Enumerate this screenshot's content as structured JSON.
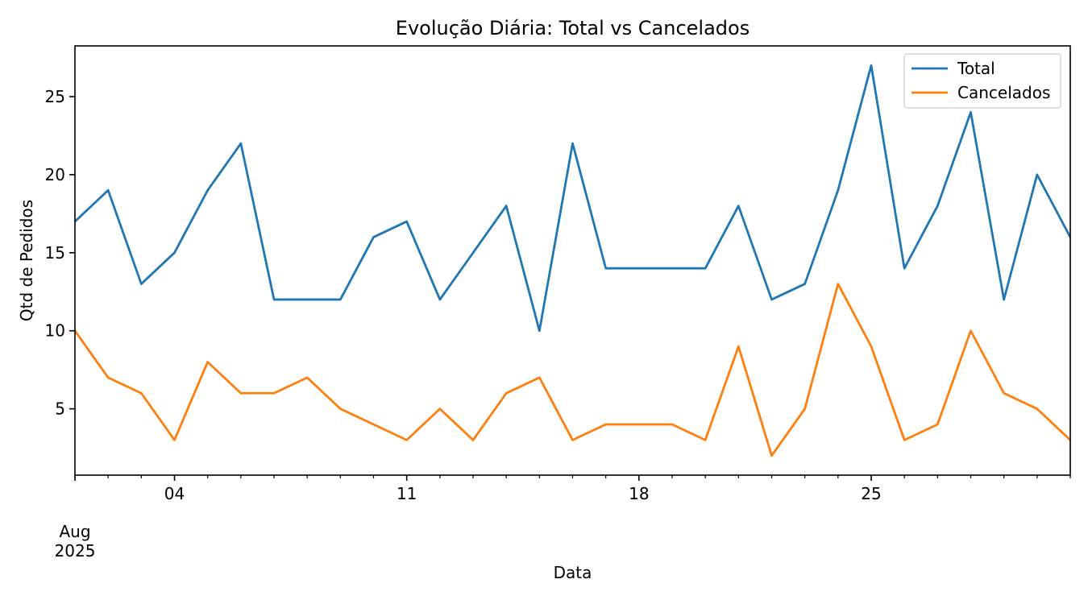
{
  "chart_data": {
    "type": "line",
    "title": "Evolução Diária: Total vs Cancelados",
    "xlabel": "Data",
    "ylabel": "Qtd de Pedidos",
    "x": [
      "2025-08-01",
      "2025-08-02",
      "2025-08-03",
      "2025-08-04",
      "2025-08-05",
      "2025-08-06",
      "2025-08-07",
      "2025-08-08",
      "2025-08-09",
      "2025-08-10",
      "2025-08-11",
      "2025-08-12",
      "2025-08-13",
      "2025-08-14",
      "2025-08-15",
      "2025-08-16",
      "2025-08-17",
      "2025-08-18",
      "2025-08-19",
      "2025-08-20",
      "2025-08-21",
      "2025-08-22",
      "2025-08-23",
      "2025-08-24",
      "2025-08-25",
      "2025-08-26",
      "2025-08-27",
      "2025-08-28",
      "2025-08-29",
      "2025-08-30",
      "2025-08-31"
    ],
    "series": [
      {
        "name": "Total",
        "color": "#1f77b4",
        "values": [
          17,
          19,
          13,
          15,
          19,
          22,
          12,
          12,
          12,
          16,
          17,
          12,
          15,
          18,
          10,
          22,
          14,
          14,
          14,
          14,
          18,
          12,
          13,
          19,
          27,
          14,
          18,
          24,
          12,
          20,
          16
        ]
      },
      {
        "name": "Cancelados",
        "color": "#ff7f0e",
        "values": [
          10,
          7,
          6,
          3,
          8,
          6,
          6,
          7,
          5,
          4,
          3,
          5,
          3,
          6,
          7,
          3,
          4,
          4,
          4,
          3,
          9,
          2,
          5,
          13,
          9,
          3,
          4,
          10,
          6,
          5,
          3
        ]
      }
    ],
    "xlim": [
      "2025-08-01",
      "2025-08-31"
    ],
    "ylim": [
      0.75,
      28.25
    ],
    "y_ticks": [
      5,
      10,
      15,
      20,
      25
    ],
    "x_major_ticks": [
      {
        "date": "2025-08-04",
        "label": "04"
      },
      {
        "date": "2025-08-11",
        "label": "11"
      },
      {
        "date": "2025-08-18",
        "label": "18"
      },
      {
        "date": "2025-08-25",
        "label": "25"
      }
    ],
    "x_month_label": "Aug",
    "x_year_label": "2025",
    "grid": false,
    "legend_position": "top-right"
  }
}
